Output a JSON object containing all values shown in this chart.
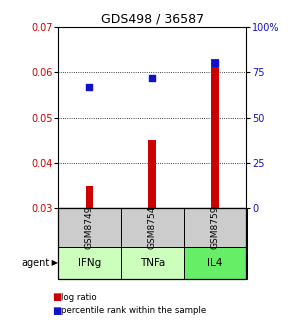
{
  "title": "GDS498 / 36587",
  "samples": [
    "GSM8749",
    "GSM8754",
    "GSM8759"
  ],
  "agents": [
    "IFNg",
    "TNFa",
    "IL4"
  ],
  "log_ratio": [
    0.035,
    0.045,
    0.063
  ],
  "percentile_rank": [
    67,
    72,
    80
  ],
  "ylim_left": [
    0.03,
    0.07
  ],
  "ylim_right": [
    0,
    100
  ],
  "yticks_left": [
    0.03,
    0.04,
    0.05,
    0.06,
    0.07
  ],
  "yticks_right": [
    0,
    25,
    50,
    75,
    100
  ],
  "ytick_labels_right": [
    "0",
    "25",
    "50",
    "75",
    "100%"
  ],
  "bar_color": "#cc0000",
  "dot_color": "#1111cc",
  "bar_width": 0.12,
  "table_gray": "#cccccc",
  "table_green_light": "#bbeeaa",
  "table_green_dark": "#88ee88",
  "legend_text1": "log ratio",
  "legend_text2": "percentile rank within the sample",
  "agent_greens": [
    "#ccffbb",
    "#ccffbb",
    "#66ee66"
  ]
}
